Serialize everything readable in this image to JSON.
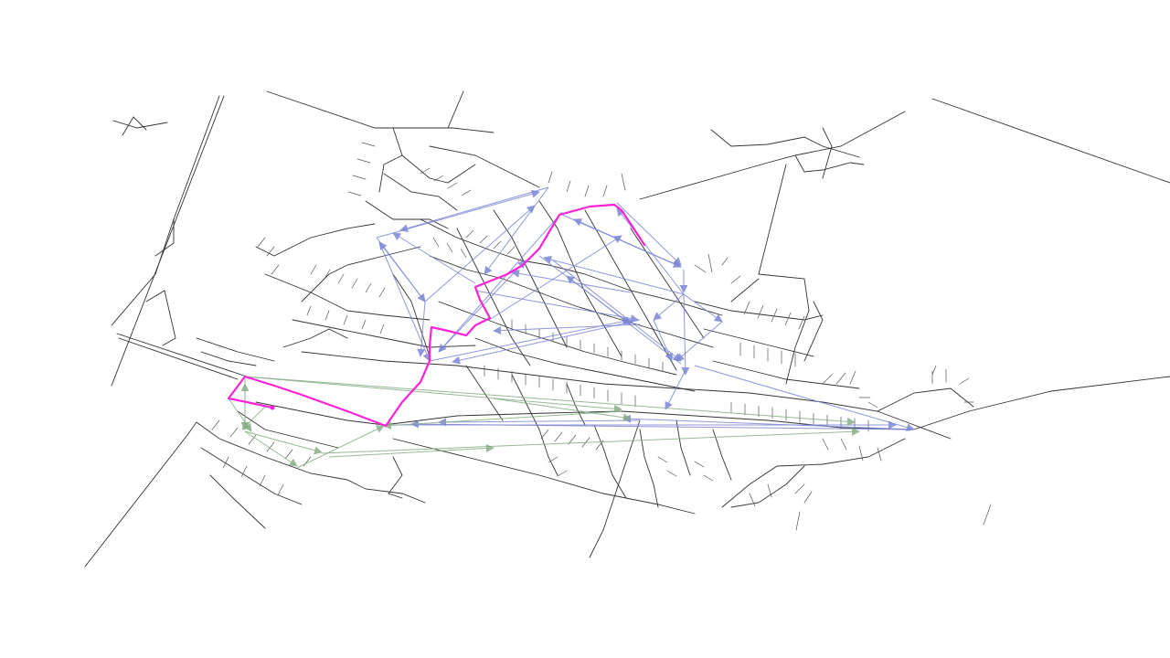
{
  "colors": {
    "background": "#ffffff",
    "roads": "#333333",
    "blue_flows": "#7b86d6",
    "green_flows": "#86ad86",
    "route_highlight": "#ff22d6"
  },
  "layers": {
    "road_network": "road-network",
    "blue_flow_arrows": "blue-flows",
    "green_flow_arrows": "green-flows",
    "highlighted_route": "magenta-route"
  }
}
